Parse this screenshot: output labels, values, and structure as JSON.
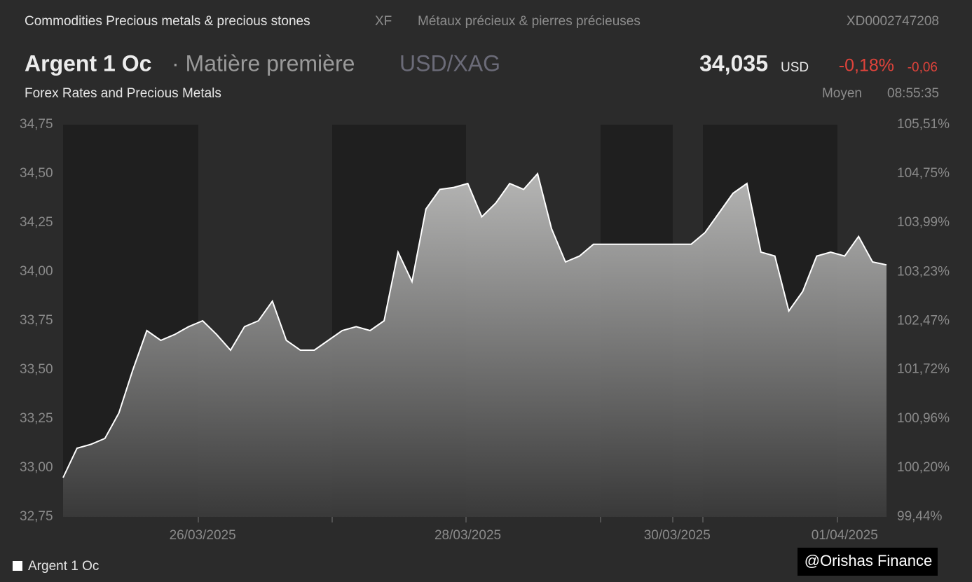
{
  "header": {
    "category": "Commodities Precious metals & precious stones",
    "code": "XF",
    "name_fr": "Métaux précieux & pierres précieuses",
    "isin": "XD0002747208"
  },
  "instrument": {
    "name": "Argent 1 Oc",
    "type": "· Matière première",
    "pair": "USD/XAG",
    "subtitle": "Forex Rates and Precious Metals",
    "price": "34,035",
    "currency": "USD",
    "change_pct": "-0,18%",
    "change_abs": "-0,06",
    "price_type": "Moyen",
    "time": "08:55:35"
  },
  "chart_data": {
    "type": "area",
    "categories": [
      null,
      null,
      null,
      null,
      null,
      null,
      null,
      null,
      null,
      null,
      "26/03/2025",
      null,
      null,
      null,
      null,
      null,
      null,
      null,
      null,
      null,
      null,
      null,
      null,
      null,
      null,
      null,
      null,
      null,
      null,
      "28/03/2025",
      null,
      null,
      null,
      null,
      null,
      null,
      null,
      null,
      null,
      null,
      null,
      null,
      null,
      null,
      "30/03/2025",
      null,
      null,
      null,
      null,
      null,
      null,
      null,
      null,
      null,
      null,
      null,
      "01/04/2025",
      null,
      null,
      null
    ],
    "series": [
      {
        "name": "Argent 1 Oc",
        "color": "#ffffff",
        "values": [
          32.95,
          33.1,
          33.12,
          33.15,
          33.28,
          33.5,
          33.7,
          33.65,
          33.68,
          33.72,
          33.75,
          33.68,
          33.6,
          33.72,
          33.75,
          33.85,
          33.65,
          33.6,
          33.6,
          33.65,
          33.7,
          33.72,
          33.7,
          33.75,
          34.1,
          33.95,
          34.32,
          34.42,
          34.43,
          34.45,
          34.28,
          34.35,
          34.45,
          34.42,
          34.5,
          34.22,
          34.05,
          34.08,
          34.14,
          34.14,
          34.14,
          34.14,
          34.14,
          34.14,
          34.14,
          34.14,
          34.2,
          34.3,
          34.4,
          34.45,
          34.1,
          34.08,
          33.8,
          33.9,
          34.08,
          34.1,
          34.08,
          34.18,
          34.05,
          34.035
        ]
      }
    ],
    "ylim": [
      32.75,
      34.75
    ],
    "yticks": [
      {
        "value": 34.75,
        "label": "34,75"
      },
      {
        "value": 34.5,
        "label": "34,50"
      },
      {
        "value": 34.25,
        "label": "34,25"
      },
      {
        "value": 34,
        "label": "34,00"
      },
      {
        "value": 33.75,
        "label": "33,75"
      },
      {
        "value": 33.5,
        "label": "33,50"
      },
      {
        "value": 33.25,
        "label": "33,25"
      },
      {
        "value": 33,
        "label": "33,00"
      },
      {
        "value": 32.75,
        "label": "32,75"
      }
    ],
    "y2lim": [
      99.44,
      105.51
    ],
    "y2ticks": [
      {
        "value": 105.51,
        "label": "105,51%"
      },
      {
        "value": 104.75,
        "label": "104,75%"
      },
      {
        "value": 103.99,
        "label": "103,99%"
      },
      {
        "value": 103.23,
        "label": "103,23%"
      },
      {
        "value": 102.47,
        "label": "102,47%"
      },
      {
        "value": 101.72,
        "label": "101,72%"
      },
      {
        "value": 100.96,
        "label": "100,96%"
      },
      {
        "value": 100.2,
        "label": "100,20%"
      },
      {
        "value": 99.44,
        "label": "99,44%"
      }
    ]
  },
  "watermark": "@Orishas Finance"
}
